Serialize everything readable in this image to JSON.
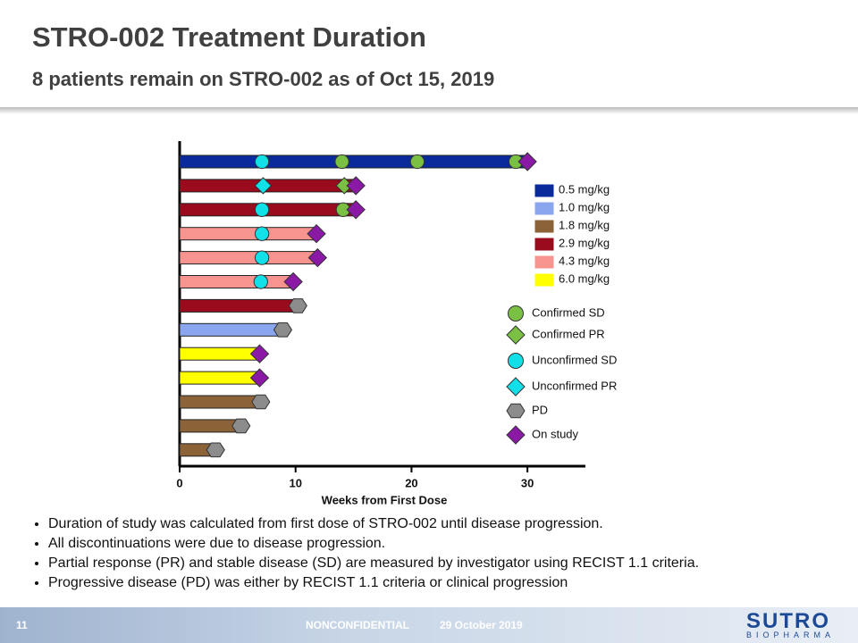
{
  "header": {
    "title": "STRO-002 Treatment Duration",
    "subtitle": "8 patients remain on STRO-002 as of Oct 15, 2019"
  },
  "chart_data": {
    "type": "swimmer",
    "x_label": "Weeks from First Dose",
    "xlim": [
      0,
      35
    ],
    "xticks": [
      0,
      10,
      20,
      30
    ],
    "doses": [
      {
        "name": "0.5 mg/kg",
        "color": "#0a2a9c"
      },
      {
        "name": "1.0 mg/kg",
        "color": "#8aa6ee"
      },
      {
        "name": "1.8 mg/kg",
        "color": "#8c6239"
      },
      {
        "name": "2.9 mg/kg",
        "color": "#9a0b1e"
      },
      {
        "name": "4.3 mg/kg",
        "color": "#f7948f"
      },
      {
        "name": "6.0 mg/kg",
        "color": "#ffff00"
      }
    ],
    "markers": [
      {
        "name": "Confirmed SD",
        "shape": "circle",
        "color": "#7ac143"
      },
      {
        "name": "Confirmed PR",
        "shape": "diamond",
        "color": "#7ac143"
      },
      {
        "name": "Unconfirmed SD",
        "shape": "circle",
        "color": "#11e0e8"
      },
      {
        "name": "Unconfirmed PR",
        "shape": "diamond",
        "color": "#11e0e8"
      },
      {
        "name": "PD",
        "shape": "hexagon",
        "color": "#8c8c8c"
      },
      {
        "name": "On study",
        "shape": "diamond",
        "color": "#8a1aa5"
      }
    ],
    "patients": [
      {
        "dose": 0,
        "duration": 30,
        "end": 5,
        "events": [
          {
            "marker": 2,
            "x": 7.1
          },
          {
            "marker": 0,
            "x": 14
          },
          {
            "marker": 0,
            "x": 20.5
          },
          {
            "marker": 0,
            "x": 29
          }
        ]
      },
      {
        "dose": 3,
        "duration": 15.2,
        "end": 5,
        "events": [
          {
            "marker": 3,
            "x": 7.2
          },
          {
            "marker": 1,
            "x": 14.2
          }
        ]
      },
      {
        "dose": 3,
        "duration": 15.2,
        "end": 5,
        "events": [
          {
            "marker": 2,
            "x": 7.1
          },
          {
            "marker": 0,
            "x": 14.1
          }
        ]
      },
      {
        "dose": 4,
        "duration": 11.8,
        "end": 5,
        "events": [
          {
            "marker": 2,
            "x": 7.1
          }
        ]
      },
      {
        "dose": 4,
        "duration": 11.9,
        "end": 5,
        "events": [
          {
            "marker": 2,
            "x": 7.1
          }
        ]
      },
      {
        "dose": 4,
        "duration": 9.8,
        "end": 5,
        "events": [
          {
            "marker": 2,
            "x": 7
          }
        ]
      },
      {
        "dose": 3,
        "duration": 10.2,
        "end": 4,
        "events": []
      },
      {
        "dose": 1,
        "duration": 8.9,
        "end": 4,
        "events": []
      },
      {
        "dose": 5,
        "duration": 6.9,
        "end": 5,
        "events": []
      },
      {
        "dose": 5,
        "duration": 6.9,
        "end": 5,
        "events": []
      },
      {
        "dose": 2,
        "duration": 7,
        "end": 4,
        "events": []
      },
      {
        "dose": 2,
        "duration": 5.3,
        "end": 4,
        "events": []
      },
      {
        "dose": 2,
        "duration": 3.1,
        "end": 4,
        "events": []
      }
    ]
  },
  "notes": [
    "Duration of study was calculated from first dose of STRO-002 until disease progression.",
    "All discontinuations were due to disease progression.",
    "Partial response (PR) and stable disease (SD) are measured by investigator using RECIST 1.1 criteria.",
    "Progressive disease (PD) was either by RECIST 1.1 criteria or clinical progression"
  ],
  "footer": {
    "page": "11",
    "label": "NONCONFIDENTIAL",
    "date": "29 October 2019",
    "logo": "SUTRO",
    "logo_sub": "BIOPHARMA"
  }
}
